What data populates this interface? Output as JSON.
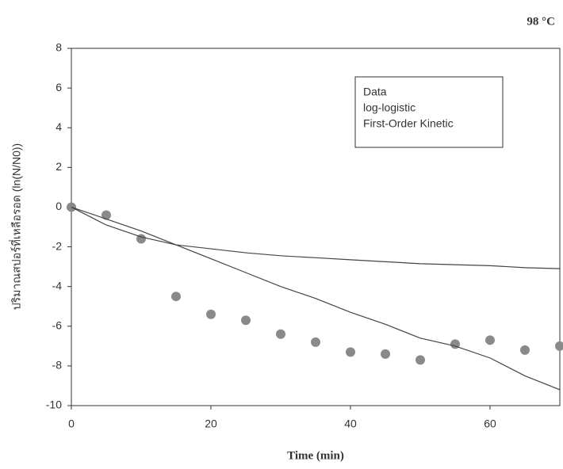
{
  "chart_data": {
    "type": "scatter-line",
    "title": "98 °C",
    "x_label": "Time (min)",
    "y_label": "ปริมาณสปอร์ที่เหลือรอด (ln(N/N0))",
    "x": [
      0,
      5,
      10,
      15,
      20,
      25,
      30,
      35,
      40,
      45,
      50,
      55,
      60,
      65,
      70
    ],
    "series": [
      {
        "name": "Data",
        "style": "markers",
        "color": "#8a8a8a",
        "values": [
          0,
          -0.4,
          -1.6,
          -4.5,
          -5.4,
          -5.7,
          -6.4,
          -6.8,
          -7.3,
          -7.4,
          -7.7,
          -6.9,
          -6.7,
          -7.2,
          -7.0
        ]
      },
      {
        "name": "log-logistic",
        "style": "line",
        "color": "#444444",
        "values": [
          0,
          -0.9,
          -1.5,
          -1.9,
          -2.1,
          -2.3,
          -2.45,
          -2.55,
          -2.65,
          -2.75,
          -2.85,
          -2.9,
          -2.95,
          -3.05,
          -3.1
        ]
      },
      {
        "name": "First-Order Kinetic",
        "style": "line",
        "color": "#444444",
        "values": [
          0,
          -0.6,
          -1.2,
          -1.9,
          -2.6,
          -3.3,
          -4.0,
          -4.6,
          -5.3,
          -5.9,
          -6.6,
          -7.0,
          -7.6,
          -8.5,
          -9.2
        ]
      }
    ],
    "xlim": [
      0,
      70
    ],
    "xticks": [
      0,
      20,
      40,
      60
    ],
    "ylim": [
      -10,
      8
    ],
    "yticks": [
      -10,
      -8,
      -6,
      -4,
      -2,
      0,
      2,
      4,
      6,
      8
    ],
    "legend": "top-right"
  }
}
